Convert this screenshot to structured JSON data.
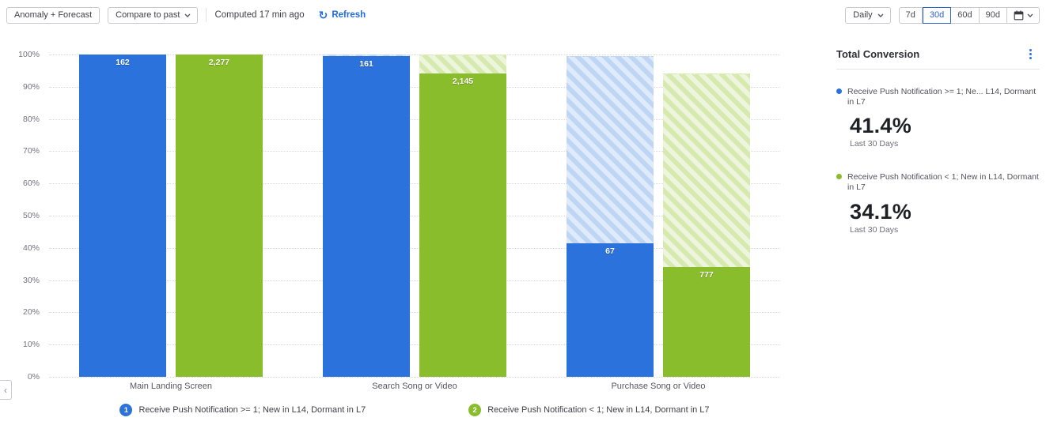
{
  "toolbar": {
    "anomaly_label": "Anomaly + Forecast",
    "compare_label": "Compare to past",
    "computed_text": "Computed 17 min ago",
    "refresh_label": "Refresh",
    "granularity_label": "Daily",
    "ranges": [
      "7d",
      "30d",
      "60d",
      "90d"
    ],
    "selected_range": "30d"
  },
  "summary": {
    "title": "Total Conversion",
    "metrics": [
      {
        "color": "#2b72dc",
        "label": "Receive Push Notification >= 1; Ne...   L14, Dormant in L7",
        "value": "41.4%",
        "caption": "Last 30 Days"
      },
      {
        "color": "#8abd2c",
        "label": "Receive Push Notification < 1; New in L14, Dormant in L7",
        "value": "34.1%",
        "caption": "Last 30 Days"
      }
    ]
  },
  "chart_data": {
    "type": "bar",
    "subtype": "funnel_conversion_grouped",
    "title": "",
    "xlabel": "",
    "ylabel": "",
    "categories": [
      "Main Landing Screen",
      "Search Song or Video",
      "Purchase Song or Video"
    ],
    "ylim": [
      0,
      100
    ],
    "yticks": [
      "100%",
      "90%",
      "80%",
      "70%",
      "60%",
      "50%",
      "40%",
      "30%",
      "20%",
      "10%",
      "0%"
    ],
    "grid": "horizontal-dotted",
    "legend_position": "bottom",
    "series": [
      {
        "name": "Receive Push Notification >= 1; New in L14, Dormant in L7",
        "color": "#2b72dc",
        "hatch_base": "#dfeafa",
        "hatch_stripe": "#bed6f3",
        "counts": [
          162,
          161,
          67
        ],
        "count_labels": [
          "162",
          "161",
          "67"
        ],
        "conversion_pct": [
          100,
          99.4,
          41.4
        ],
        "dropoff_top_pct": [
          100,
          100,
          99.4
        ]
      },
      {
        "name": "Receive Push Notification < 1; New in L14, Dormant in L7",
        "color": "#8abd2c",
        "hatch_base": "#eef5dd",
        "hatch_stripe": "#d6e9af",
        "counts": [
          2277,
          2145,
          777
        ],
        "count_labels": [
          "2,277",
          "2,145",
          "777"
        ],
        "conversion_pct": [
          100,
          94.2,
          34.1
        ],
        "dropoff_top_pct": [
          100,
          100,
          94.2
        ]
      }
    ],
    "legend": [
      {
        "index": "1",
        "label": "Receive Push Notification >= 1; New in L14, Dormant in L7",
        "color": "#2b72dc"
      },
      {
        "index": "2",
        "label": "Receive Push Notification < 1; New in L14, Dormant in L7",
        "color": "#8abd2c"
      }
    ]
  }
}
